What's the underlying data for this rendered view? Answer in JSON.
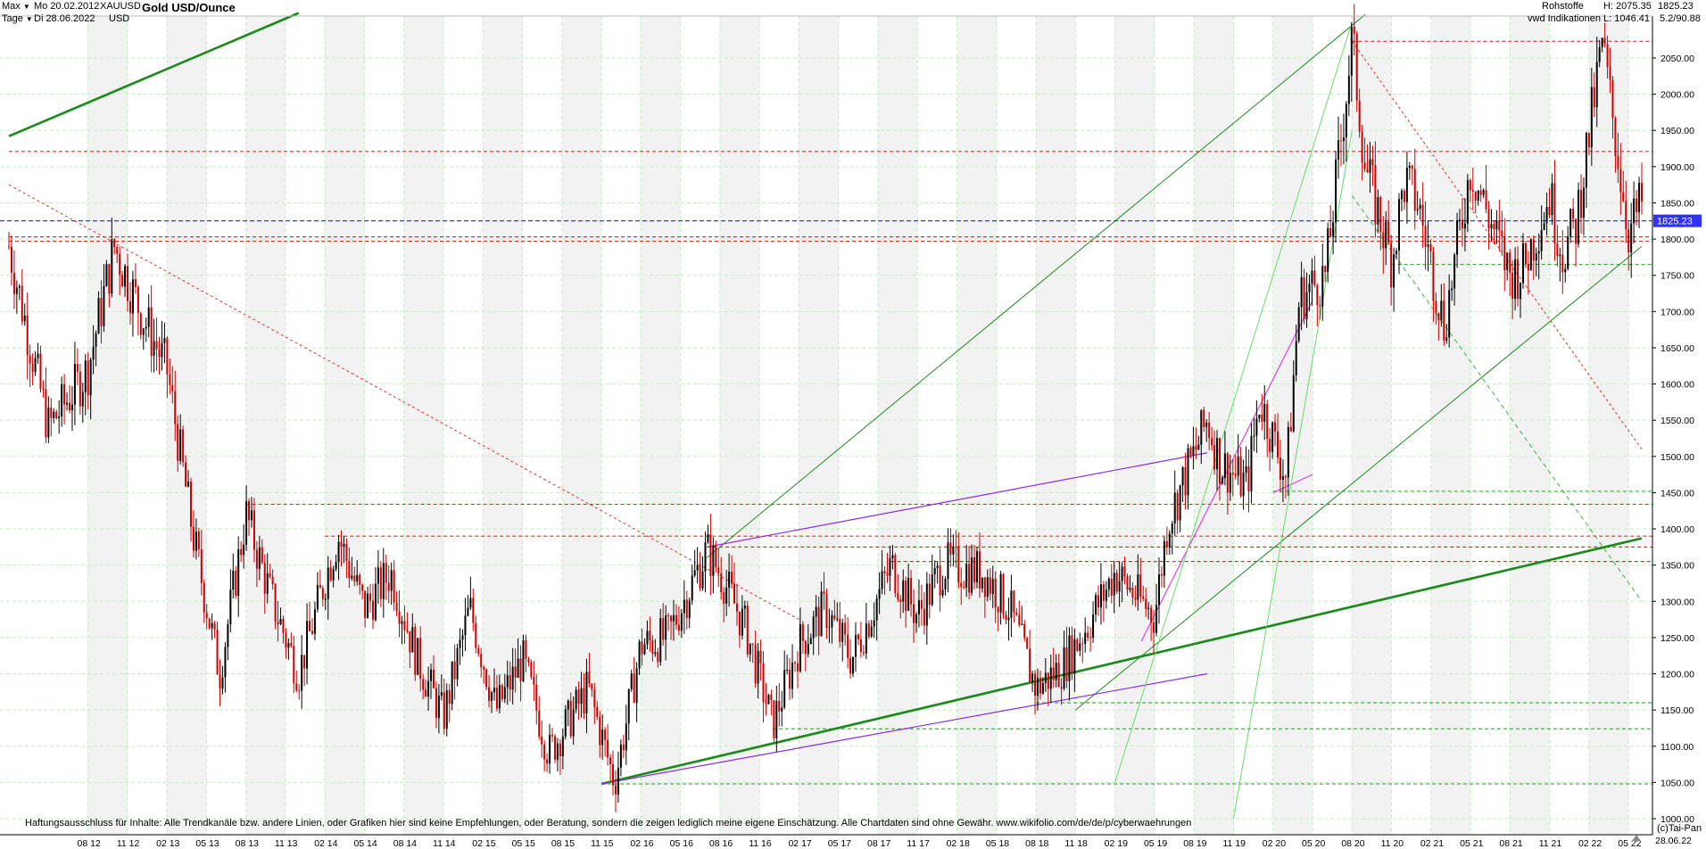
{
  "header": {
    "range_label": "Max",
    "interval_label": "Tage",
    "date_from": "Mo 20.02.2012",
    "date_to": "Di 28.06.2022",
    "symbol": "XAUUSD",
    "currency": "USD",
    "title": "Gold USD/Ounce",
    "category": "Rohstoffe",
    "source": "vwd Indikationen",
    "high_label": "H: 2075.35",
    "low_label": "L: 1046.41",
    "last": "1825.23",
    "scale": "5.2/90.88"
  },
  "footer": {
    "disclaimer": "Haftungsausschluss für Inhalte: Alle Trendkanäle bzw. andere Linien, oder Grafiken hier sind keine Empfehlungen, oder Beratung, sondern die zeigen lediglich meine eigene Einschätzung. Alle Chartdaten sind ohne Gewähr.  www.wikifolio.com/de/de/p/cyberwaehrungen",
    "copyright": "(c)Tai-Pan",
    "last_date": "28.06.22"
  },
  "colors": {
    "candle_up": "#000000",
    "candle_down": "#cc0000",
    "support_dashed": "#e03030",
    "current_price": "#3030ff",
    "trend_green": "#1a8a1a",
    "trend_light": "#66dd66",
    "trend_purple": "#8a2be2",
    "trend_magenta": "#e040e0",
    "grid": "#bfefbf"
  },
  "chart_data": {
    "type": "candlestick",
    "title": "Gold USD/Ounce",
    "ylim": [
      985,
      2085
    ],
    "y_ticks": [
      1000,
      1050,
      1100,
      1150,
      1200,
      1250,
      1300,
      1350,
      1400,
      1450,
      1500,
      1550,
      1600,
      1650,
      1700,
      1750,
      1800,
      1850,
      1900,
      1950,
      2000,
      2050
    ],
    "x_ticks": [
      "08 12",
      "11 12",
      "02 13",
      "05 13",
      "08 13",
      "11 13",
      "02 14",
      "05 14",
      "08 14",
      "11 14",
      "02 15",
      "05 15",
      "08 15",
      "11 15",
      "02 16",
      "05 16",
      "08 16",
      "11 16",
      "02 17",
      "05 17",
      "08 17",
      "11 17",
      "02 18",
      "05 18",
      "08 18",
      "11 18",
      "02 19",
      "05 19",
      "08 19",
      "11 19",
      "02 20",
      "05 20",
      "08 20",
      "11 20",
      "02 21",
      "05 21",
      "08 21",
      "11 21",
      "02 22",
      "05 22"
    ],
    "current_price": 1825.23,
    "high": 2075.35,
    "low": 1046.41,
    "price_path": [
      [
        "02 12",
        1790
      ],
      [
        "05 12",
        1540
      ],
      [
        "08 12",
        1620
      ],
      [
        "10 12",
        1790
      ],
      [
        "12 12",
        1700
      ],
      [
        "02 13",
        1620
      ],
      [
        "04 13",
        1390
      ],
      [
        "06 13",
        1200
      ],
      [
        "08 13",
        1420
      ],
      [
        "10 13",
        1300
      ],
      [
        "12 13",
        1200
      ],
      [
        "02 14",
        1330
      ],
      [
        "03 14",
        1390
      ],
      [
        "05 14",
        1290
      ],
      [
        "07 14",
        1340
      ],
      [
        "09 14",
        1220
      ],
      [
        "11 14",
        1140
      ],
      [
        "01 15",
        1290
      ],
      [
        "03 15",
        1150
      ],
      [
        "05 15",
        1220
      ],
      [
        "07 15",
        1090
      ],
      [
        "08 15",
        1120
      ],
      [
        "10 15",
        1180
      ],
      [
        "12 15",
        1050
      ],
      [
        "02 16",
        1240
      ],
      [
        "04 16",
        1250
      ],
      [
        "07 16",
        1370
      ],
      [
        "08 16",
        1340
      ],
      [
        "10 16",
        1260
      ],
      [
        "12 16",
        1130
      ],
      [
        "02 17",
        1240
      ],
      [
        "04 17",
        1290
      ],
      [
        "06 17",
        1220
      ],
      [
        "09 17",
        1350
      ],
      [
        "11 17",
        1280
      ],
      [
        "01 18",
        1350
      ],
      [
        "04 18",
        1340
      ],
      [
        "06 18",
        1290
      ],
      [
        "08 18",
        1180
      ],
      [
        "10 18",
        1210
      ],
      [
        "12 18",
        1270
      ],
      [
        "02 19",
        1340
      ],
      [
        "05 19",
        1280
      ],
      [
        "06 19",
        1410
      ],
      [
        "09 19",
        1550
      ],
      [
        "10 19",
        1490
      ],
      [
        "12 19",
        1460
      ],
      [
        "01 20",
        1580
      ],
      [
        "03 20",
        1470
      ],
      [
        "04 20",
        1720
      ],
      [
        "06 20",
        1750
      ],
      [
        "08 20",
        2075
      ],
      [
        "09 20",
        1900
      ],
      [
        "11 20",
        1770
      ],
      [
        "12 20",
        1880
      ],
      [
        "01 21",
        1850
      ],
      [
        "03 21",
        1680
      ],
      [
        "05 21",
        1900
      ],
      [
        "07 21",
        1800
      ],
      [
        "08 21",
        1750
      ],
      [
        "09 21",
        1760
      ],
      [
        "11 21",
        1860
      ],
      [
        "12 21",
        1780
      ],
      [
        "01 22",
        1820
      ],
      [
        "03 22",
        2070
      ],
      [
        "04 22",
        1940
      ],
      [
        "05 22",
        1810
      ],
      [
        "06 22",
        1850
      ],
      [
        "06 22",
        1825
      ]
    ],
    "horizontal_levels": [
      {
        "price": 1825.23,
        "style": "blue-dashed"
      },
      {
        "price": 2073,
        "style": "red-dashed"
      },
      {
        "price": 1921,
        "style": "red-dashed"
      },
      {
        "price": 1803,
        "style": "red-dashed"
      },
      {
        "price": 1797,
        "style": "red-dashed"
      },
      {
        "price": 1434,
        "style": "red-dashed"
      },
      {
        "price": 1390,
        "style": "red-dashed"
      },
      {
        "price": 1375,
        "style": "red-dashed"
      },
      {
        "price": 1355,
        "style": "red-dashed"
      },
      {
        "price": 1765,
        "style": "green-dashed"
      },
      {
        "price": 1452,
        "style": "green-dashed"
      },
      {
        "price": 1160,
        "style": "green-dashed"
      },
      {
        "price": 1124,
        "style": "green-dashed"
      },
      {
        "price": 1048,
        "style": "green-dashed"
      }
    ],
    "trend_lines": [
      {
        "from": [
          "02 12",
          1942
        ],
        "to": [
          "12 13",
          2112
        ],
        "style": "green-thick"
      },
      {
        "from": [
          "11 15",
          1048
        ],
        "to": [
          "06 22",
          1387
        ],
        "style": "green-thick"
      },
      {
        "from": [
          "07 16",
          1360
        ],
        "to": [
          "09 20",
          2110
        ],
        "style": "green"
      },
      {
        "from": [
          "11 18",
          1150
        ],
        "to": [
          "06 22",
          1790
        ],
        "style": "green"
      },
      {
        "from": [
          "07 16",
          1375
        ],
        "to": [
          "09 19",
          1505
        ],
        "style": "purple"
      },
      {
        "from": [
          "11 15",
          1048
        ],
        "to": [
          "09 19",
          1200
        ],
        "style": "purple"
      },
      {
        "from": [
          "04 19",
          1245
        ],
        "to": [
          "05 20",
          1715
        ],
        "style": "magenta"
      },
      {
        "from": [
          "02 20",
          1450
        ],
        "to": [
          "05 20",
          1475
        ],
        "style": "magenta"
      },
      {
        "from": [
          "02 12",
          1875
        ],
        "to": [
          "02 17",
          1275
        ],
        "style": "red-dotted"
      },
      {
        "from": [
          "08 20",
          2073
        ],
        "to": [
          "06 22",
          1510
        ],
        "style": "red-dotted"
      },
      {
        "from": [
          "08 20",
          1860
        ],
        "to": [
          "06 22",
          1300
        ],
        "style": "green-dashed"
      }
    ]
  }
}
